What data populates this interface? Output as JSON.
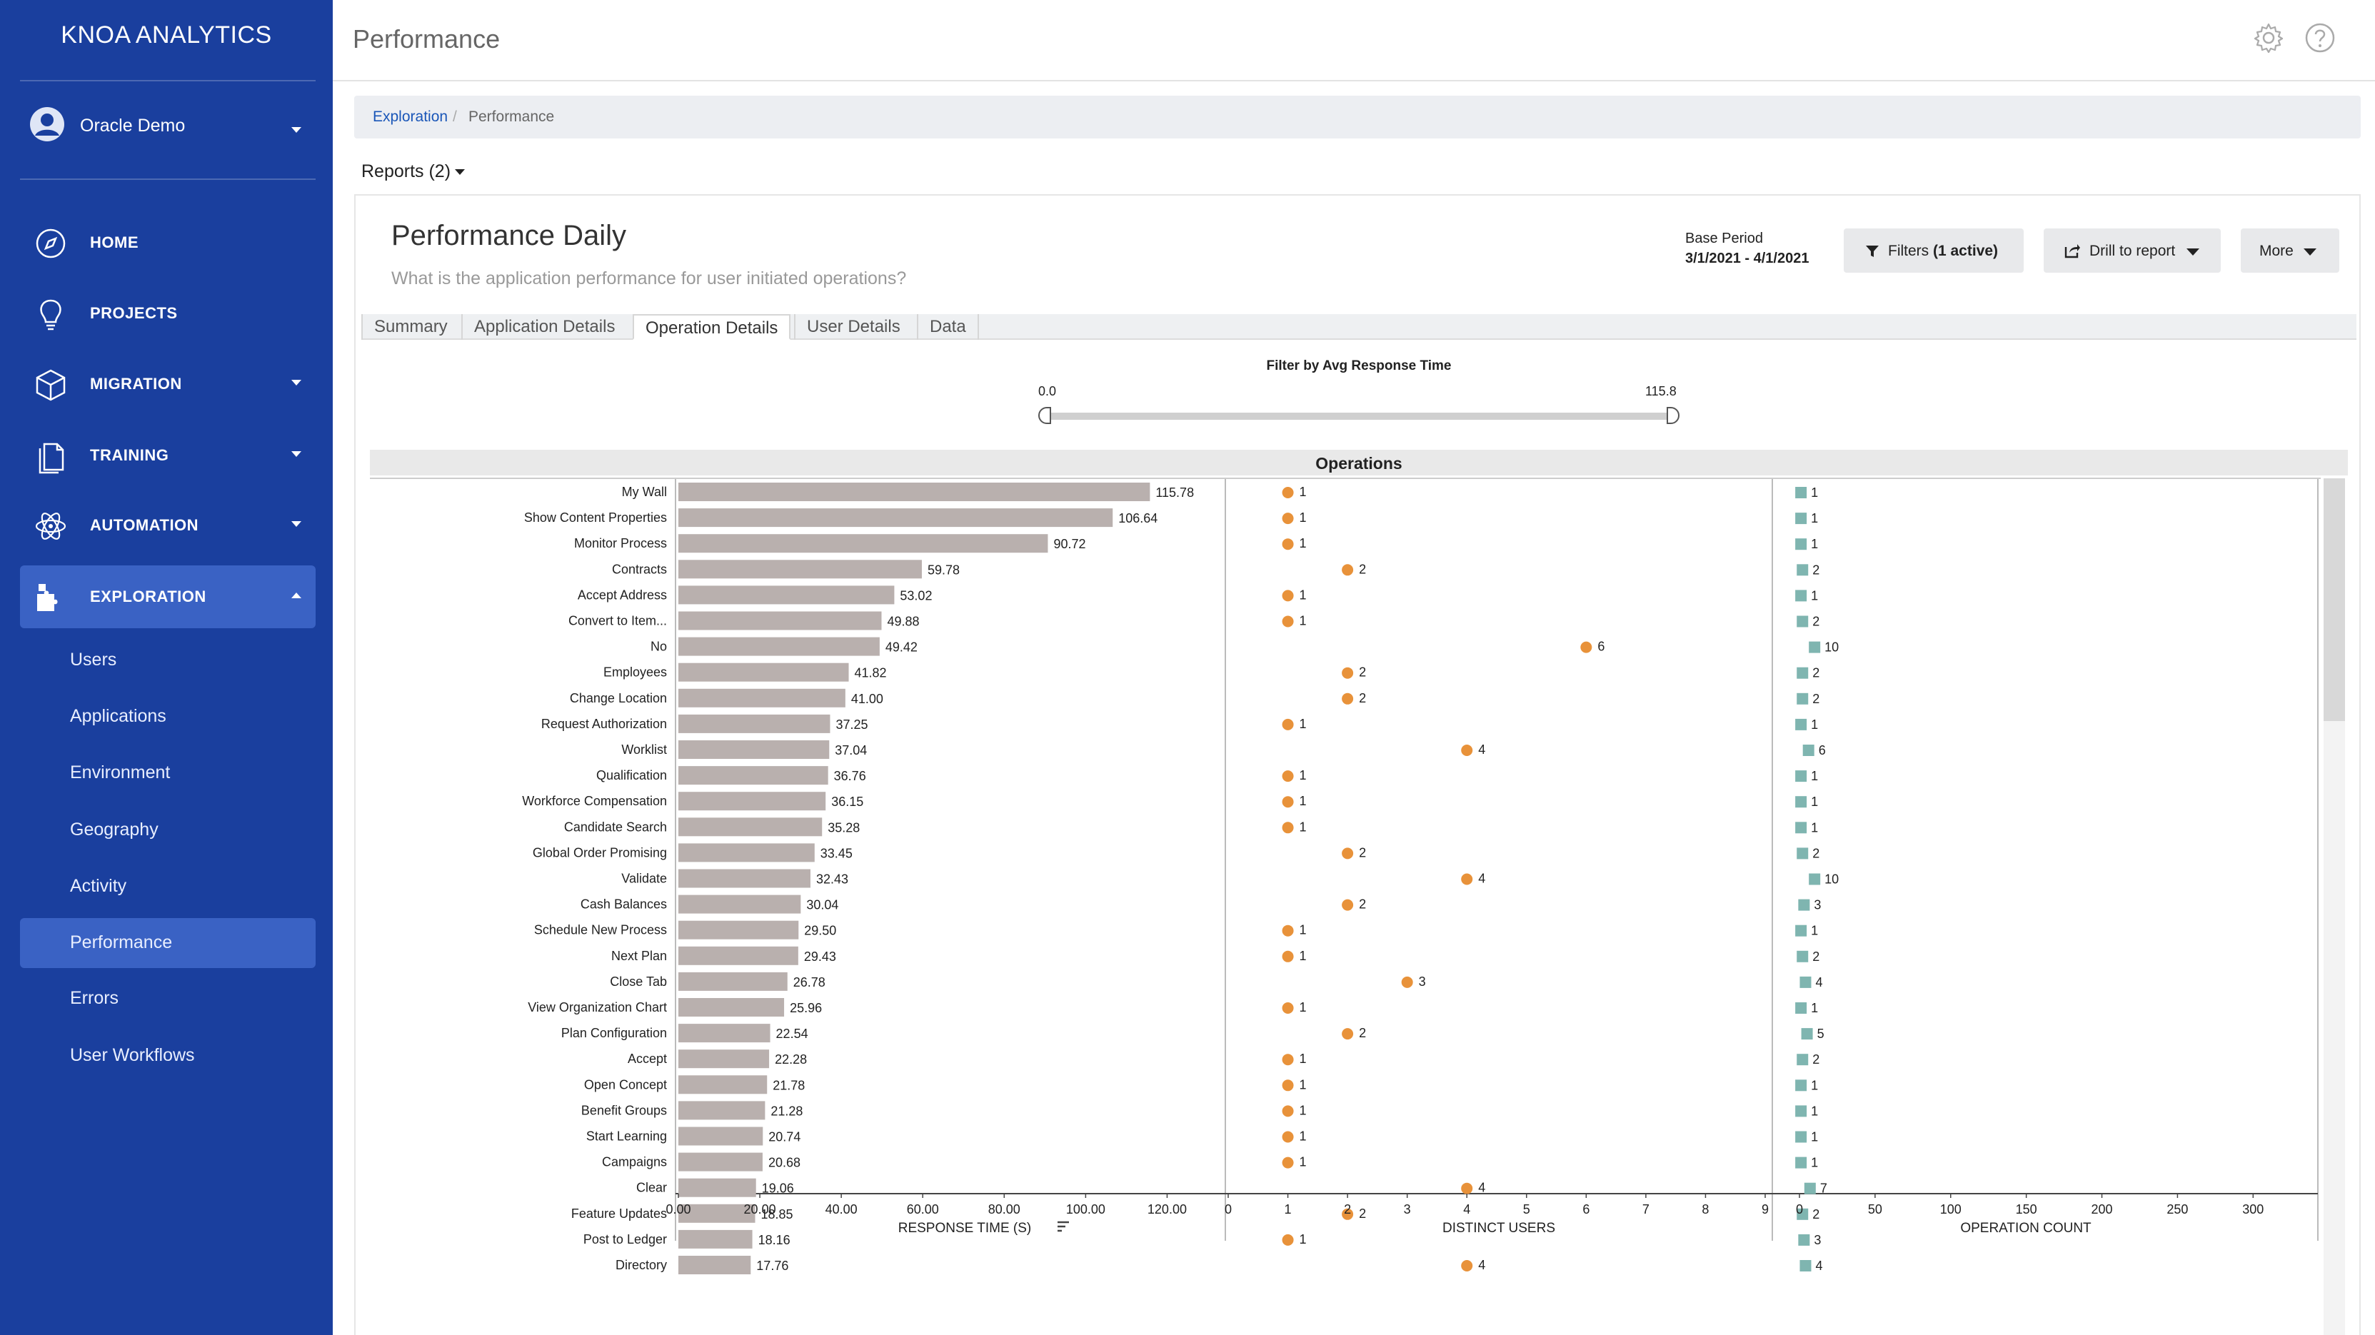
{
  "sidebar": {
    "brand": "KNOA ANALYTICS",
    "user": "Oracle Demo",
    "nav": [
      {
        "label": "HOME",
        "icon": "compass-icon"
      },
      {
        "label": "PROJECTS",
        "icon": "lightbulb-icon"
      },
      {
        "label": "MIGRATION",
        "icon": "cube-icon"
      },
      {
        "label": "TRAINING",
        "icon": "documents-icon"
      },
      {
        "label": "AUTOMATION",
        "icon": "atom-icon"
      },
      {
        "label": "EXPLORATION",
        "icon": "puzzle-icon"
      }
    ],
    "sub": [
      "Users",
      "Applications",
      "Environment",
      "Geography",
      "Activity",
      "Performance",
      "Errors",
      "User Workflows"
    ]
  },
  "header": {
    "title": "Performance"
  },
  "breadcrumb": {
    "parent": "Exploration",
    "sep": "/",
    "current": "Performance"
  },
  "reports_dropdown": "Reports (2)",
  "report": {
    "title": "Performance Daily",
    "subtitle": "What is the application performance for user initiated operations?",
    "base_period_label": "Base Period",
    "base_period_value": "3/1/2021 - 4/1/2021",
    "filters_prefix": "Filters ",
    "filters_count": "(1 active)",
    "drill_label": "Drill to report",
    "more_label": "More"
  },
  "tabs": [
    "Summary",
    "Application Details",
    "Operation Details",
    "User Details",
    "Data"
  ],
  "active_tab": "Operation Details",
  "slider": {
    "title": "Filter by Avg Response Time",
    "min_label": "0.0",
    "max_label": "115.8",
    "min": 0.0,
    "max": 115.8
  },
  "section_title": "Operations",
  "colors": {
    "sidebar": "#1a3f9e",
    "bar": "#b9b0ae",
    "dot": "#e8923a",
    "square": "#7fb5b0",
    "active_nav": "#3a62c4"
  },
  "chart_data": [
    {
      "type": "bar",
      "orientation": "horizontal",
      "xlabel": "RESPONSE TIME (S)",
      "xlim": [
        0,
        135
      ],
      "ticks": [
        "0.00",
        "20.00",
        "40.00",
        "60.00",
        "80.00",
        "100.00",
        "120.00"
      ],
      "categories": [
        "My Wall",
        "Show Content Properties",
        "Monitor Process",
        "Contracts",
        "Accept Address",
        "Convert to Item...",
        "No",
        "Employees",
        "Change Location",
        "Request Authorization",
        "Worklist",
        "Qualification",
        "Workforce Compensation",
        "Candidate Search",
        "Global Order Promising",
        "Validate",
        "Cash Balances",
        "Schedule New Process",
        "Next Plan",
        "Close Tab",
        "View Organization Chart",
        "Plan Configuration",
        "Accept",
        "Open Concept",
        "Benefit Groups",
        "Start Learning",
        "Campaigns",
        "Clear",
        "Feature Updates",
        "Post to Ledger",
        "Directory"
      ],
      "values": [
        115.78,
        106.64,
        90.72,
        59.78,
        53.02,
        49.88,
        49.42,
        41.82,
        41.0,
        37.25,
        37.04,
        36.76,
        36.15,
        35.28,
        33.45,
        32.43,
        30.04,
        29.5,
        29.43,
        26.78,
        25.96,
        22.54,
        22.28,
        21.78,
        21.28,
        20.74,
        20.68,
        19.06,
        18.85,
        18.16,
        17.76
      ],
      "value_labels": [
        "115.78",
        "106.64",
        "90.72",
        "59.78",
        "53.02",
        "49.88",
        "49.42",
        "41.82",
        "41.00",
        "37.25",
        "37.04",
        "36.76",
        "36.15",
        "35.28",
        "33.45",
        "32.43",
        "30.04",
        "29.50",
        "29.43",
        "26.78",
        "25.96",
        "22.54",
        "22.28",
        "21.78",
        "21.28",
        "20.74",
        "20.68",
        "19.06",
        "18.85",
        "18.16",
        "17.76"
      ]
    },
    {
      "type": "scatter",
      "xlabel": "DISTINCT USERS",
      "xlim": [
        0,
        9
      ],
      "ticks": [
        "0",
        "1",
        "2",
        "3",
        "4",
        "5",
        "6",
        "7",
        "8",
        "9"
      ],
      "values": [
        1,
        1,
        1,
        2,
        1,
        1,
        6,
        2,
        2,
        1,
        4,
        1,
        1,
        1,
        2,
        4,
        2,
        1,
        1,
        3,
        1,
        2,
        1,
        1,
        1,
        1,
        1,
        4,
        2,
        1,
        4
      ]
    },
    {
      "type": "scatter",
      "xlabel": "OPERATION COUNT",
      "xlim": [
        0,
        340
      ],
      "ticks": [
        "0",
        "50",
        "100",
        "150",
        "200",
        "250",
        "300"
      ],
      "values": [
        1,
        1,
        1,
        2,
        1,
        2,
        10,
        2,
        2,
        1,
        6,
        1,
        1,
        1,
        2,
        10,
        3,
        1,
        2,
        4,
        1,
        5,
        2,
        1,
        1,
        1,
        1,
        7,
        2,
        3,
        4
      ]
    }
  ]
}
